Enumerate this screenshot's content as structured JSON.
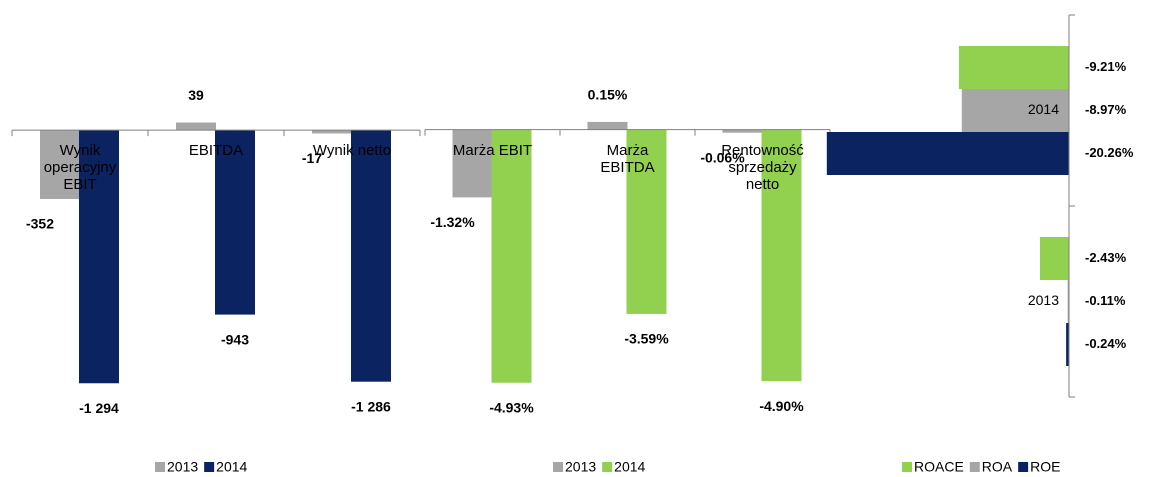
{
  "chart_data": [
    {
      "type": "bar",
      "categories": [
        "Wynik operacyjny EBIT",
        "EBITDA",
        "Wynik netto"
      ],
      "series": [
        {
          "name": "2013",
          "color": "#a6a6a6",
          "values": [
            -352,
            39,
            -17
          ],
          "value_labels": [
            "-352",
            "39",
            "-17"
          ]
        },
        {
          "name": "2014",
          "color": "#0b2360",
          "values": [
            -1294,
            -943,
            -1286
          ],
          "value_labels": [
            "-1 294",
            "-943",
            "-1 286"
          ]
        }
      ],
      "ylim": [
        -1400,
        200
      ],
      "legend": "bottom"
    },
    {
      "type": "bar",
      "categories": [
        "Marża EBIT",
        "Marża EBITDA",
        "Rentowność sprzedaży netto"
      ],
      "series": [
        {
          "name": "2013",
          "color": "#a6a6a6",
          "values": [
            -1.32,
            0.15,
            -0.06
          ],
          "value_labels": [
            "-1.32%",
            "0.15%",
            "-0.06%"
          ]
        },
        {
          "name": "2014",
          "color": "#92d050",
          "values": [
            -4.93,
            -3.59,
            -4.9
          ],
          "value_labels": [
            "-4.93%",
            "-3.59%",
            "-4.90%"
          ]
        }
      ],
      "ylim": [
        -5.5,
        1.2
      ],
      "legend": "bottom"
    },
    {
      "type": "barh",
      "categories": [
        "2014",
        "2013"
      ],
      "series": [
        {
          "name": "ROACE",
          "color": "#92d050",
          "values": [
            -9.21,
            -2.43
          ],
          "value_labels": [
            "-9.21%",
            "-2.43%"
          ]
        },
        {
          "name": "ROA",
          "color": "#a6a6a6",
          "values": [
            -8.97,
            -0.11
          ],
          "value_labels": [
            "-8.97%",
            "-0.11%"
          ]
        },
        {
          "name": "ROE",
          "color": "#0b2360",
          "values": [
            -20.26,
            -0.24
          ],
          "value_labels": [
            "-20.26%",
            "-0.24%"
          ]
        }
      ],
      "xlim": [
        -22,
        0
      ],
      "legend": "bottom"
    }
  ]
}
